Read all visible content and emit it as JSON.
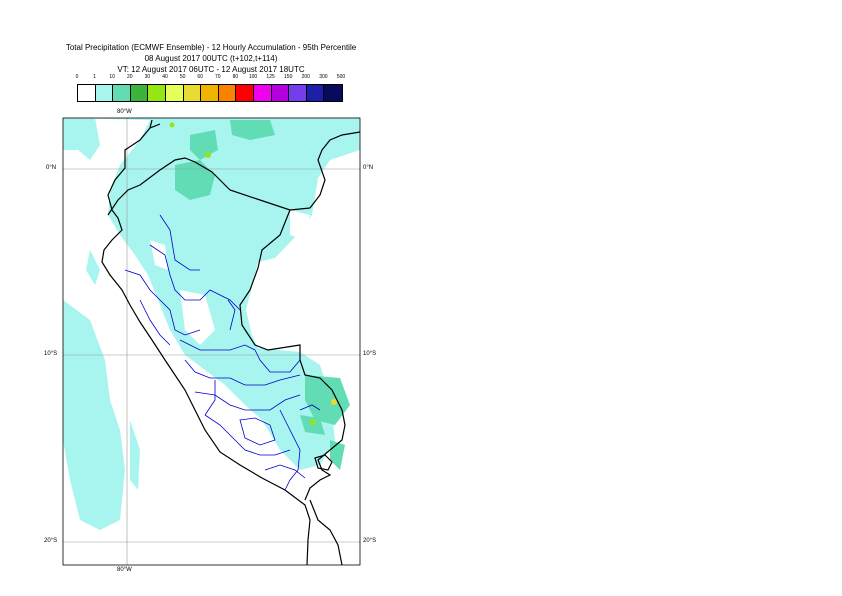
{
  "title": {
    "line1": "Total Precipitation (ECMWF Ensemble) - 12 Hourly Accumulation - 95th Percentile",
    "line2": "08 August 2017 00UTC (t+102,t+114)",
    "line3": "VT: 12 August 2017 06UTC - 12 August 2017 18UTC"
  },
  "legend": {
    "labels": [
      "0",
      "1",
      "10",
      "20",
      "30",
      "40",
      "50",
      "60",
      "70",
      "80",
      "100",
      "125",
      "150",
      "200",
      "300",
      "500"
    ],
    "colors": [
      "#ffffff",
      "#a8f5f0",
      "#62dcb4",
      "#3cb43c",
      "#96e614",
      "#e6ff5a",
      "#e6dc32",
      "#f0b400",
      "#fa8200",
      "#ff0000",
      "#f000f0",
      "#b400dc",
      "#783cf0",
      "#1e1eaa",
      "#0a0a5a"
    ]
  },
  "axes": {
    "top_lon": "80°W",
    "bottom_lon": "80°W",
    "lat_0_left": "0°N",
    "lat_0_right": "0°N",
    "lat_10_left": "10°S",
    "lat_10_right": "10°S",
    "lat_20_left": "20°S",
    "lat_20_right": "20°S"
  },
  "map": {
    "ocean_color": "#ffffff",
    "light_precip_color": "#a8f5f0",
    "coast_color": "#000000",
    "region_border_color": "#0000cc",
    "country_border_color": "#000000",
    "grid_color": "#999999"
  }
}
